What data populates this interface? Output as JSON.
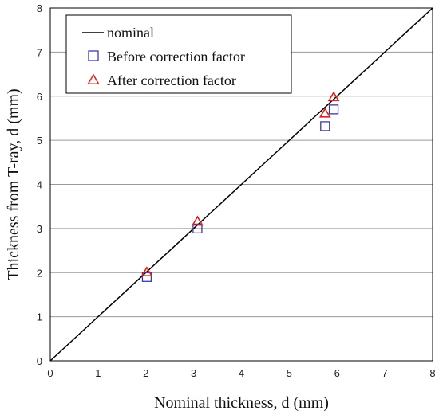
{
  "chart_data": {
    "type": "scatter",
    "xlabel": "Nominal thickness, d (mm)",
    "ylabel": "Thickness from T-ray, d (mm)",
    "xlim": [
      0,
      8
    ],
    "ylim": [
      0,
      8
    ],
    "xticks": [
      "0",
      "1",
      "2",
      "3",
      "4",
      "5",
      "6",
      "7",
      "8"
    ],
    "yticks": [
      "0",
      "1",
      "2",
      "3",
      "4",
      "5",
      "6",
      "7",
      "8"
    ],
    "grid": "horizontal",
    "legend_position": "top-left",
    "series": [
      {
        "name": "nominal",
        "kind": "line",
        "color": "#000000",
        "x": [
          0,
          8
        ],
        "y": [
          0,
          8
        ]
      },
      {
        "name": "Before correction factor",
        "kind": "marker",
        "marker": "square",
        "color": "#3a3aa0",
        "x": [
          2.02,
          3.08,
          5.75,
          5.93
        ],
        "y": [
          1.9,
          3.0,
          5.32,
          5.7
        ]
      },
      {
        "name": "After correction factor",
        "kind": "marker",
        "marker": "triangle",
        "color": "#e0201b",
        "x": [
          2.02,
          3.08,
          5.75,
          5.93
        ],
        "y": [
          2.0,
          3.15,
          5.6,
          5.97
        ]
      }
    ]
  }
}
